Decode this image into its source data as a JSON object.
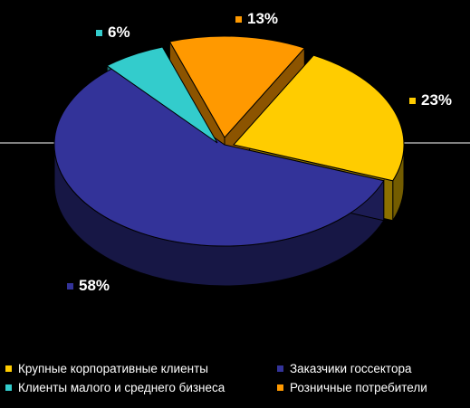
{
  "chart_data": {
    "type": "pie",
    "style": "3d-exploded",
    "title": "",
    "categories": [
      "Крупные корпоративные клиенты",
      "Заказчики госсектора",
      "Клиенты малого и среднего бизнеса",
      "Розничные потребители"
    ],
    "values": [
      23,
      58,
      6,
      13
    ],
    "labels": [
      "23%",
      "58%",
      "6%",
      "13%"
    ],
    "colors": [
      "#FFCC00",
      "#333399",
      "#33CCCC",
      "#FF9900"
    ],
    "legend_position": "bottom",
    "background": "#000000"
  }
}
